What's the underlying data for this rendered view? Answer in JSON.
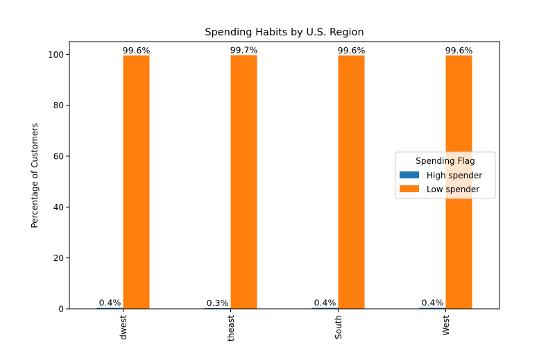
{
  "chart_data": {
    "type": "bar",
    "title": "Spending Habits by U.S. Region",
    "xlabel": "",
    "ylabel": "Percentage of Customers",
    "ylim": [
      0,
      105
    ],
    "yticks": [
      0,
      20,
      40,
      60,
      80,
      100
    ],
    "categories": [
      "Midwest",
      "Northeast",
      "South",
      "West"
    ],
    "tick_labels": [
      "dwest",
      "theast",
      "South",
      "West"
    ],
    "series": [
      {
        "name": "High spender",
        "values": [
          0.4,
          0.3,
          0.4,
          0.4
        ],
        "labels": [
          "0.4%",
          "0.3%",
          "0.4%",
          "0.4%"
        ],
        "color": "#1f77b4"
      },
      {
        "name": "Low spender",
        "values": [
          99.6,
          99.7,
          99.6,
          99.6
        ],
        "labels": [
          "99.6%",
          "99.7%",
          "99.6%",
          "99.6%"
        ],
        "color": "#ff7f0e"
      }
    ],
    "legend": {
      "title": "Spending Flag",
      "placement": "center-right"
    },
    "grid": false
  }
}
